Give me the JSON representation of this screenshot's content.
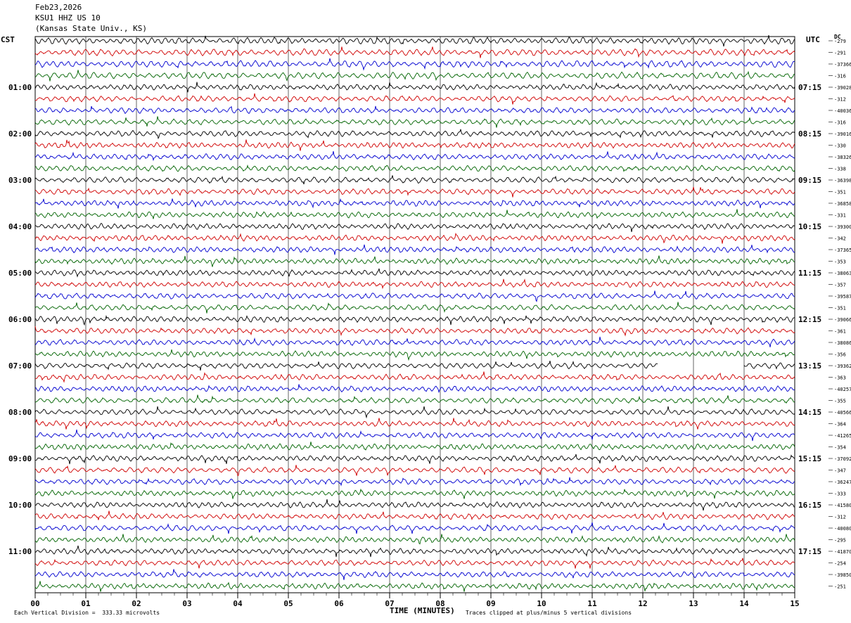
{
  "header": {
    "date": "Feb23,2026",
    "station": "KSU1 HHZ US 10",
    "location": "(Kansas State Univ., KS)"
  },
  "left_zone": "CST",
  "right_zone": "UTC",
  "dc_label": "DC",
  "footer": {
    "scale": "Each Vertical Division =  333.33 microvolts",
    "clip": "Traces clipped at plus/minus 5 vertical divisions"
  },
  "colors": {
    "cycle": [
      "#000000",
      "#d00000",
      "#0000d0",
      "#006400"
    ],
    "grid": "#000000"
  },
  "chart_data": {
    "type": "line",
    "title": "Feb23,2026",
    "xlabel": "TIME (MINUTES)",
    "ylabel": "",
    "xlim": [
      0,
      15
    ],
    "x_ticks": [
      "00",
      "01",
      "02",
      "03",
      "04",
      "05",
      "06",
      "07",
      "08",
      "09",
      "10",
      "11",
      "12",
      "13",
      "14",
      "15"
    ],
    "left_hour_labels": [
      "01:00",
      "02:00",
      "03:00",
      "04:00",
      "05:00",
      "06:00",
      "07:00",
      "08:00",
      "09:00",
      "10:00",
      "11:00"
    ],
    "right_hour_labels": [
      "07:15",
      "08:15",
      "09:15",
      "10:15",
      "11:15",
      "12:15",
      "13:15",
      "14:15",
      "15:15",
      "16:15",
      "17:15"
    ],
    "first_hour_label_trace": 4,
    "trace_count": 48,
    "traces_per_hour": 4,
    "dc_offsets": [
      "-279",
      "-291",
      "-37366",
      "-316",
      "-39028",
      "-312",
      "-40036",
      "-316",
      "-39016",
      "-330",
      "-38326",
      "-338",
      "-36398",
      "-351",
      "-36858",
      "-331",
      "-39300",
      "-342",
      "-37365",
      "-353",
      "-38063",
      "-357",
      "-39587",
      "-351",
      "-39066",
      "-361",
      "-38086",
      "-356",
      "-39362",
      "-363",
      "-40257",
      "-355",
      "-40566",
      "-364",
      "-41265",
      "-354",
      "-37092",
      "-347",
      "-36247",
      "-333",
      "-41580",
      "-312",
      "-40080",
      "-295",
      "-41870",
      "-254",
      "-39850",
      "-251"
    ],
    "data_gap": {
      "trace": 28,
      "x_start": 12.3,
      "x_end": 14.0
    }
  }
}
